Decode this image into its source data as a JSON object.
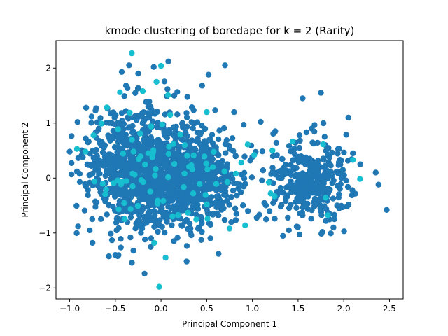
{
  "chart_data": {
    "type": "scatter",
    "title": "kmode clustering of boredape for k = 2 (Rarity)",
    "xlabel": "Principal Component 1",
    "ylabel": "Principal Component 2",
    "xlim": [
      -1.15,
      2.65
    ],
    "ylim": [
      -2.2,
      2.5
    ],
    "xticks": [
      -1.0,
      -0.5,
      0.0,
      0.5,
      1.0,
      1.5,
      2.0,
      2.5
    ],
    "xtick_labels": [
      "−1.0",
      "−0.5",
      "0.0",
      "0.5",
      "1.0",
      "1.5",
      "2.0",
      "2.5"
    ],
    "yticks": [
      -2,
      -1,
      0,
      1,
      2
    ],
    "ytick_labels": [
      "−2",
      "−1",
      "0",
      "1",
      "2"
    ],
    "grid": false,
    "legend": "none",
    "series": [
      {
        "color": "#1f77b4",
        "clusters": [
          {
            "cx": -0.25,
            "cy": 0.15,
            "sx": 0.28,
            "sy": 0.55,
            "n": 900
          },
          {
            "cx": 0.35,
            "cy": 0.0,
            "sx": 0.25,
            "sy": 0.45,
            "n": 650
          },
          {
            "cx": 1.62,
            "cy": -0.05,
            "sx": 0.22,
            "sy": 0.38,
            "n": 330
          }
        ],
        "points": [
          [
            -1.0,
            0.48
          ],
          [
            -0.92,
            0.12
          ],
          [
            -0.82,
            1.28
          ],
          [
            -0.78,
            -0.95
          ],
          [
            -0.75,
            -1.18
          ],
          [
            -0.5,
            -1.4
          ],
          [
            -0.43,
            1.93
          ],
          [
            -0.35,
            2.05
          ],
          [
            -0.25,
            1.9
          ],
          [
            -0.18,
            -1.74
          ],
          [
            -0.08,
            2.02
          ],
          [
            0.08,
            2.12
          ],
          [
            0.28,
            -1.52
          ],
          [
            0.45,
            1.68
          ],
          [
            0.52,
            1.88
          ],
          [
            0.63,
            -1.38
          ],
          [
            0.7,
            2.05
          ],
          [
            0.8,
            1.2
          ],
          [
            0.95,
            -0.6
          ],
          [
            1.15,
            -0.75
          ],
          [
            1.25,
            0.85
          ],
          [
            1.4,
            -0.95
          ],
          [
            1.55,
            1.45
          ],
          [
            1.65,
            0.9
          ],
          [
            1.75,
            1.55
          ],
          [
            1.95,
            -0.55
          ],
          [
            2.05,
            1.1
          ],
          [
            2.1,
            0.45
          ],
          [
            2.18,
            0.25
          ],
          [
            2.35,
            0.1
          ],
          [
            2.38,
            -0.12
          ],
          [
            2.47,
            -0.58
          ]
        ]
      },
      {
        "color": "#17becf",
        "clusters": [
          {
            "cx": -0.15,
            "cy": 0.25,
            "sx": 0.3,
            "sy": 0.6,
            "n": 60
          },
          {
            "cx": 0.45,
            "cy": 0.1,
            "sx": 0.25,
            "sy": 0.5,
            "n": 20
          },
          {
            "cx": 1.6,
            "cy": 0.0,
            "sx": 0.2,
            "sy": 0.3,
            "n": 6
          }
        ],
        "points": [
          [
            -0.32,
            2.27
          ],
          [
            -0.02,
            -1.98
          ],
          [
            -0.45,
            1.56
          ],
          [
            -0.2,
            1.58
          ],
          [
            -0.05,
            1.75
          ],
          [
            0.1,
            1.15
          ],
          [
            0.5,
            1.2
          ],
          [
            0.0,
            2.04
          ],
          [
            -0.92,
            0.53
          ],
          [
            0.92,
            -0.86
          ],
          [
            0.75,
            -0.92
          ],
          [
            0.82,
            0.08
          ],
          [
            1.02,
            0.42
          ],
          [
            1.18,
            -0.08
          ],
          [
            1.22,
            0.5
          ],
          [
            1.2,
            -0.28
          ],
          [
            2.1,
            0.33
          ],
          [
            0.05,
            -1.45
          ]
        ]
      }
    ]
  }
}
